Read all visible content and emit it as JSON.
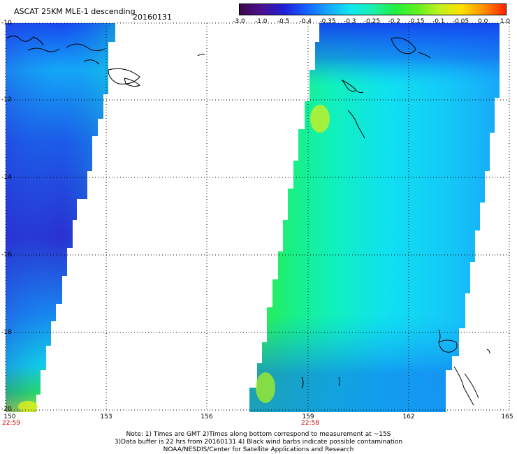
{
  "header": {
    "title": "ASCAT 25KM MLE-1 descending",
    "date": "20160131"
  },
  "colorbar": {
    "ticks": [
      "-3.0",
      "-1.0",
      "-0.5",
      "-0.4",
      "-0.35",
      "-0.3",
      "-0.25",
      "-0.2",
      "-0.15",
      "-0.1",
      "-0.05",
      "0.0",
      "1.0"
    ],
    "stops": [
      "#3a0a4a",
      "#4a1090",
      "#2020d8",
      "#1460ff",
      "#14a8ff",
      "#10e8f0",
      "#18f0b0",
      "#20f040",
      "#60f020",
      "#c0f020",
      "#ffe000",
      "#ff9000",
      "#ff2000"
    ]
  },
  "axes": {
    "lat_labels": [
      "-10",
      "-12",
      "-14",
      "-16",
      "-18",
      "-20"
    ],
    "lon_labels": [
      "150",
      "153",
      "156",
      "159",
      "162",
      "165"
    ],
    "times": [
      {
        "label": "22:59",
        "lon": "150"
      },
      {
        "label": "22:58",
        "lon": "159"
      }
    ]
  },
  "notes": {
    "line1": "Note: 1) Times are GMT 2)Times along bottom correspond to measurement at ~15S",
    "line2": "3)Data buffer is 22 hrs from 20160131 4) Black wind barbs indicate possible contamination",
    "line3": "NOAA/NESDIS/Center for Satellite Applications and Research"
  }
}
